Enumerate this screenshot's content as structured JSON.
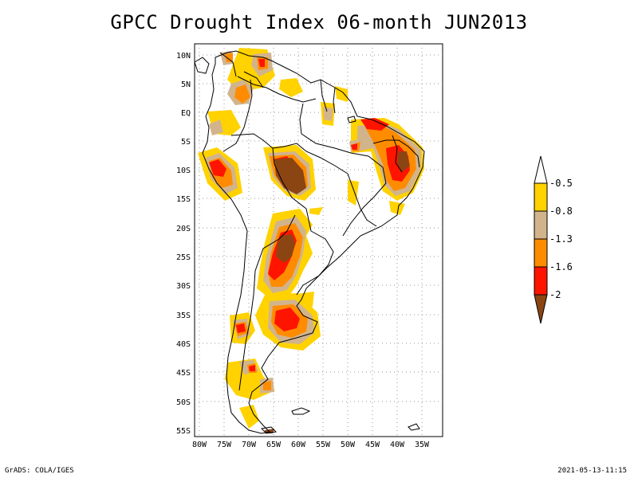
{
  "title": "GPCC Drought Index 06-month JUN2013",
  "footer": {
    "left": "GrADS: COLA/IGES",
    "right": "2021-05-13-11:15"
  },
  "map": {
    "lat_labels": [
      "10N",
      "5N",
      "EQ",
      "5S",
      "10S",
      "15S",
      "20S",
      "25S",
      "30S",
      "35S",
      "40S",
      "45S",
      "50S",
      "55S"
    ],
    "lon_labels": [
      "80W",
      "75W",
      "70W",
      "65W",
      "60W",
      "55W",
      "50W",
      "45W",
      "40W",
      "35W"
    ]
  },
  "legend": {
    "labels": [
      "-0.5",
      "-0.8",
      "-1.3",
      "-1.6",
      "-2"
    ],
    "colors": {
      "light": "#ffd200",
      "tan": "#d2b48c",
      "orange": "#ff8c00",
      "red": "#ff1400",
      "brown": "#8b4513",
      "top": "#ffffff"
    }
  }
}
